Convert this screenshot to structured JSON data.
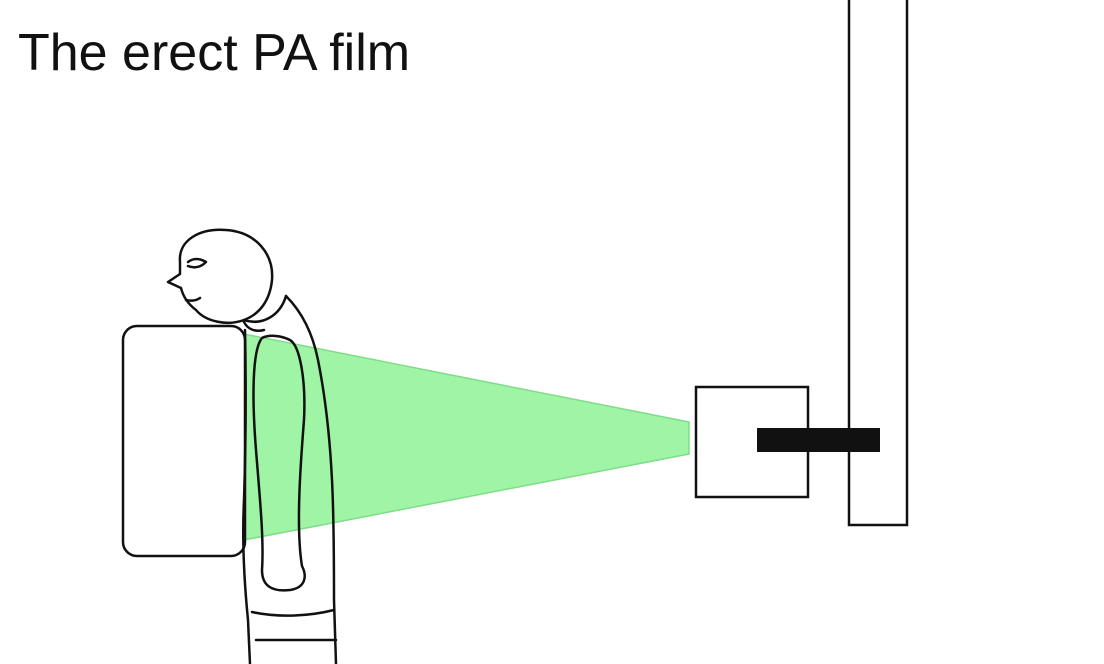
{
  "title": "The erect PA film",
  "colors": {
    "beam": "#9ff5a5",
    "beam_edge": "#7fdc87",
    "outline": "#111111",
    "background": "#ffffff"
  },
  "objects": {
    "figure": "patient-figure",
    "detector": "film-cassette",
    "tube": "x-ray-tube",
    "stand": "tube-stand"
  }
}
